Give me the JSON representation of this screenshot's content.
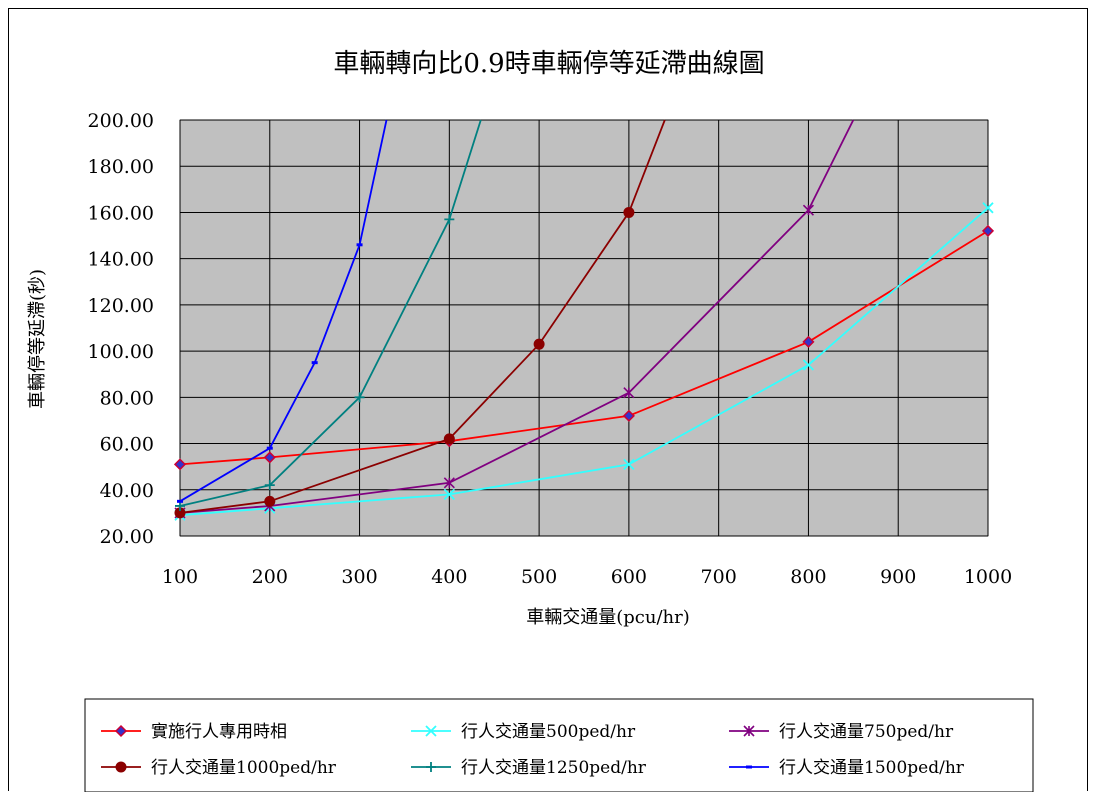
{
  "chart_data": {
    "type": "line",
    "title": "車輛轉向比0.9時車輛停等延滯曲線圖",
    "xlabel": "車輛交通量(pcu/hr)",
    "ylabel": "車輛停等延滯(秒)",
    "x_ticks": [
      "100",
      "200",
      "300",
      "400",
      "500",
      "600",
      "700",
      "800",
      "900",
      "1000"
    ],
    "y_ticks": [
      "20.00",
      "40.00",
      "60.00",
      "80.00",
      "100.00",
      "120.00",
      "140.00",
      "160.00",
      "180.00",
      "200.00"
    ],
    "xlim": [
      100,
      1000
    ],
    "ylim": [
      20,
      200
    ],
    "grid": true,
    "legend_position": "bottom",
    "series": [
      {
        "name": "實施行人專用時相",
        "color": "#ff0000",
        "marker": "diamond",
        "marker_color": "#cc0033",
        "x": [
          100,
          200,
          400,
          600,
          800,
          1000
        ],
        "values": [
          51,
          54,
          61,
          72,
          104,
          152
        ]
      },
      {
        "name": "行人交通量500ped/hr",
        "color": "#33ffff",
        "marker": "x",
        "x": [
          100,
          200,
          400,
          600,
          800,
          1000
        ],
        "values": [
          29,
          32,
          38,
          51,
          94,
          162
        ]
      },
      {
        "name": "行人交通量750ped/hr",
        "color": "#800080",
        "marker": "asterisk",
        "x": [
          100,
          200,
          400,
          600,
          800,
          850
        ],
        "values": [
          30,
          33,
          43,
          82,
          161,
          200
        ]
      },
      {
        "name": "行人交通量1000ped/hr",
        "color": "#8b0000",
        "marker": "circle",
        "x": [
          100,
          200,
          400,
          500,
          600,
          640
        ],
        "values": [
          30,
          35,
          62,
          103,
          160,
          200
        ]
      },
      {
        "name": "行人交通量1250ped/hr",
        "color": "#008080",
        "marker": "plus",
        "x": [
          100,
          200,
          300,
          400,
          435
        ],
        "values": [
          33,
          42,
          80,
          157,
          200
        ]
      },
      {
        "name": "行人交通量1500ped/hr",
        "color": "#0000ff",
        "marker": "dash",
        "x": [
          100,
          200,
          250,
          300,
          330
        ],
        "values": [
          35,
          58,
          95,
          146,
          200
        ]
      }
    ]
  }
}
